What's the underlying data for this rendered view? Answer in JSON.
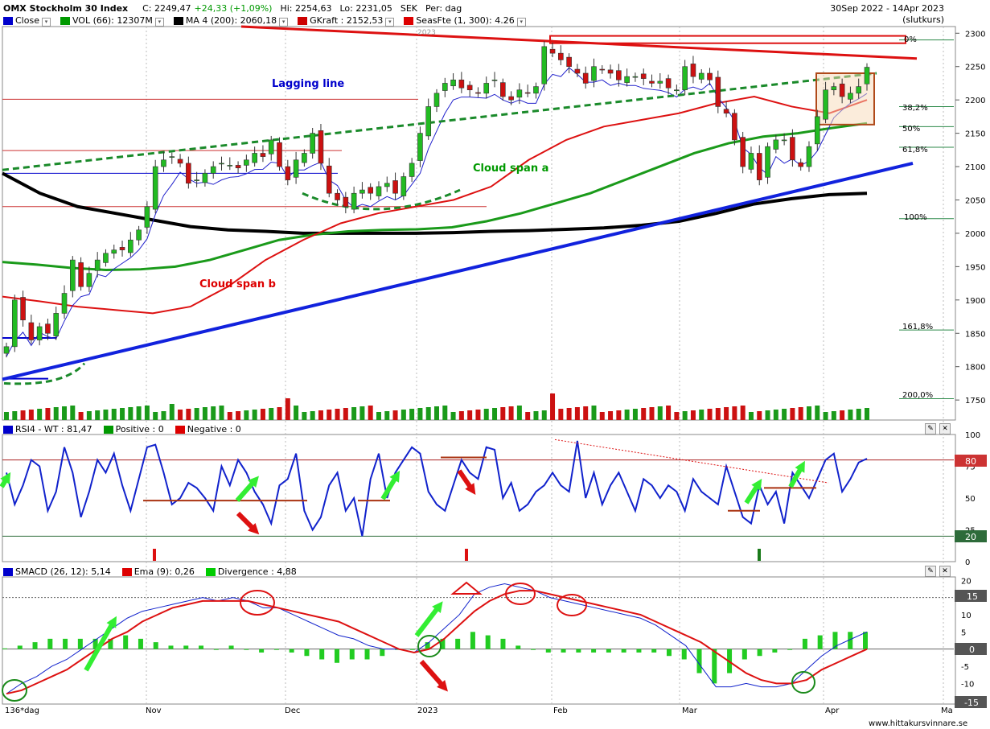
{
  "header": {
    "title": "OMX Stockholm 30 Index",
    "close": "C: 2249,47",
    "change": "+24,33 (+1,09%)",
    "high": "Hi: 2254,63",
    "low": "Lo: 2231,05",
    "currency": "SEK",
    "period": "Per: dag",
    "date_range": "30Sep 2022 - 14Apr 2023",
    "price_type": "(slutkurs)"
  },
  "legend_main": [
    {
      "label": "Close",
      "color": "#0000cc"
    },
    {
      "label": "VOL (66): 12307M",
      "color": "#009900"
    },
    {
      "label": "MA 4 (200): 2060,18",
      "color": "#000000"
    },
    {
      "label": "GKraft : 2152,53",
      "color": "#cc0000"
    },
    {
      "label": "SeasFte (1, 300): 4.26",
      "color": "#dd0000"
    }
  ],
  "legend_rsi": [
    {
      "label": "RSI4 - WT : 81,47",
      "color": "#0000cc"
    },
    {
      "label": "Positive : 0",
      "color": "#009900"
    },
    {
      "label": "Negative : 0",
      "color": "#dd0000"
    }
  ],
  "legend_macd": [
    {
      "label": "SMACD (26, 12): 5,14",
      "color": "#0000cc"
    },
    {
      "label": "Ema (9): 0,26",
      "color": "#dd0000"
    },
    {
      "label": "Divergence : 4,88",
      "color": "#00cc00"
    }
  ],
  "annotations": {
    "lagging": "Lagging line",
    "cloud_a": "Cloud span a",
    "cloud_b": "Cloud span b",
    "year_marker": "2023"
  },
  "fib_labels": [
    "0%",
    "38,2%",
    "50%",
    "61,8%",
    "100%",
    "161,8%",
    "200,0%"
  ],
  "rsi_tag_high": "80",
  "rsi_tag_low": "20",
  "macd_tag_15": "15",
  "macd_tag_0": "0",
  "macd_tag_m15": "-15",
  "x_axis_labels": [
    "136*dag",
    "Nov",
    "Dec",
    "2023",
    "Feb",
    "Mar",
    "Apr",
    "Ma"
  ],
  "footer": "www.hittakursvinnare.se",
  "chart_data": [
    {
      "type": "candlestick",
      "title": "OMX Stockholm 30 Index",
      "ylim": [
        1720,
        2310
      ],
      "y_ticks": [
        1750,
        1800,
        1850,
        1900,
        1950,
        2000,
        2050,
        2100,
        2150,
        2200,
        2250,
        2300
      ],
      "series": [
        {
          "name": "Close",
          "values": [
            1830,
            1900,
            1870,
            1840,
            1860,
            1850,
            1880,
            1910,
            1960,
            1920,
            1940,
            1960,
            1970,
            1975,
            1975,
            1990,
            2005,
            2040,
            2100,
            2110,
            2115,
            2105,
            2075,
            2080,
            2090,
            2100,
            2105,
            2102,
            2098,
            2110,
            2120,
            2115,
            2140,
            2100,
            2080,
            2110,
            2120,
            2150,
            2105,
            2060,
            2050,
            2040,
            2060,
            2065,
            2060,
            2070,
            2075,
            2060,
            2085,
            2105,
            2150,
            2190,
            2210,
            2225,
            2230,
            2218,
            2215,
            2210,
            2225,
            2230,
            2205,
            2200,
            2215,
            2210,
            2220,
            2280,
            2270,
            2260,
            2250,
            2240,
            2225,
            2250,
            2245,
            2240,
            2230,
            2235,
            2235,
            2232,
            2225,
            2228,
            2218,
            2215,
            2250,
            2235,
            2240,
            2230,
            2190,
            2180,
            2140,
            2100,
            2120,
            2080,
            2130,
            2140,
            2140,
            2110,
            2100,
            2130,
            2175,
            2215,
            2220,
            2205,
            2210,
            2220,
            2249
          ]
        },
        {
          "name": "MA 4 (200)",
          "values": [
            2090,
            2060,
            2040,
            2030,
            2020,
            2010,
            2005,
            2003,
            2000,
            2000,
            2000,
            2000,
            2001,
            2003,
            2004,
            2006,
            2008,
            2012,
            2018,
            2030,
            2044,
            2052,
            2058,
            2060
          ]
        }
      ]
    },
    {
      "type": "line",
      "title": "RSI4 - WT",
      "ylim": [
        0,
        100
      ],
      "y_ticks": [
        0,
        25,
        50,
        75,
        100
      ],
      "series": [
        {
          "name": "RSI4",
          "values": [
            70,
            45,
            60,
            80,
            75,
            40,
            55,
            90,
            70,
            35,
            55,
            80,
            70,
            85,
            60,
            40,
            65,
            90,
            92,
            70,
            45,
            50,
            62,
            58,
            50,
            40,
            75,
            60,
            80,
            70,
            55,
            45,
            30,
            60,
            65,
            85,
            40,
            25,
            35,
            60,
            70,
            40,
            50,
            20,
            65,
            85,
            50,
            70,
            80,
            90,
            85,
            55,
            45,
            40,
            60,
            80,
            70,
            65,
            90,
            88,
            50,
            62,
            40,
            45,
            55,
            60,
            70,
            60,
            55,
            95,
            50,
            70,
            45,
            60,
            70,
            55,
            40,
            65,
            60,
            50,
            60,
            55,
            40,
            65,
            55,
            50,
            45,
            75,
            55,
            35,
            30,
            60,
            45,
            55,
            30,
            70,
            60,
            50,
            65,
            80,
            85,
            55,
            65,
            78,
            81
          ]
        }
      ],
      "reference_lines": [
        20,
        80
      ]
    },
    {
      "type": "line",
      "title": "SMACD (26, 12)",
      "ylim": [
        -16,
        21
      ],
      "y_ticks": [
        -15,
        -10,
        -5,
        0,
        5,
        10,
        15,
        20
      ],
      "series": [
        {
          "name": "SMACD (26, 12)",
          "values": [
            -13,
            -10,
            -8,
            -5,
            -3,
            0,
            3,
            6,
            9,
            11,
            12,
            13,
            14,
            15,
            14,
            15,
            14,
            12,
            12,
            10,
            8,
            6,
            4,
            3,
            1,
            0,
            0,
            -1,
            2,
            6,
            10,
            16,
            18,
            19,
            18,
            17,
            15,
            14,
            13,
            12,
            11,
            10,
            9,
            7,
            4,
            1,
            -5,
            -11,
            -11,
            -10,
            -11,
            -11,
            -10,
            -6,
            -2,
            1,
            3,
            5
          ]
        },
        {
          "name": "Ema (9)",
          "values": [
            -13,
            -12,
            -10,
            -8,
            -6,
            -3,
            0,
            3,
            5,
            8,
            10,
            12,
            13,
            14,
            14,
            14,
            14,
            13,
            12,
            11,
            10,
            9,
            8,
            6,
            4,
            2,
            0,
            -1,
            0,
            3,
            7,
            11,
            14,
            16,
            17,
            17,
            16,
            15,
            14,
            13,
            12,
            11,
            10,
            8,
            6,
            4,
            2,
            -1,
            -4,
            -7,
            -9,
            -10,
            -10,
            -9,
            -6,
            -4,
            -2,
            0
          ]
        },
        {
          "name": "Divergence",
          "values": [
            0.2,
            1,
            2,
            3,
            3,
            3,
            3,
            3,
            4,
            3,
            2,
            1,
            1,
            1,
            0,
            1,
            0,
            -1,
            0,
            -1,
            -2,
            -3,
            -4,
            -3,
            -3,
            -2,
            0,
            0,
            2,
            3,
            3,
            5,
            4,
            3,
            1,
            0,
            -1,
            -1,
            -1,
            -1,
            -1,
            -1,
            -1,
            -1,
            -2,
            -3,
            -7,
            -10,
            -7,
            -3,
            -2,
            -1,
            0,
            3,
            4,
            5,
            5,
            5
          ]
        }
      ]
    }
  ]
}
